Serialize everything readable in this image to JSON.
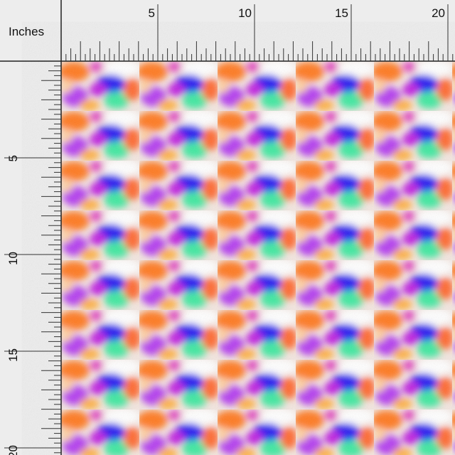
{
  "ruler": {
    "unit_label": "Inches",
    "top_labels": [
      "5",
      "10",
      "15",
      "20"
    ],
    "left_labels": [
      "5",
      "10",
      "15",
      "20"
    ]
  }
}
